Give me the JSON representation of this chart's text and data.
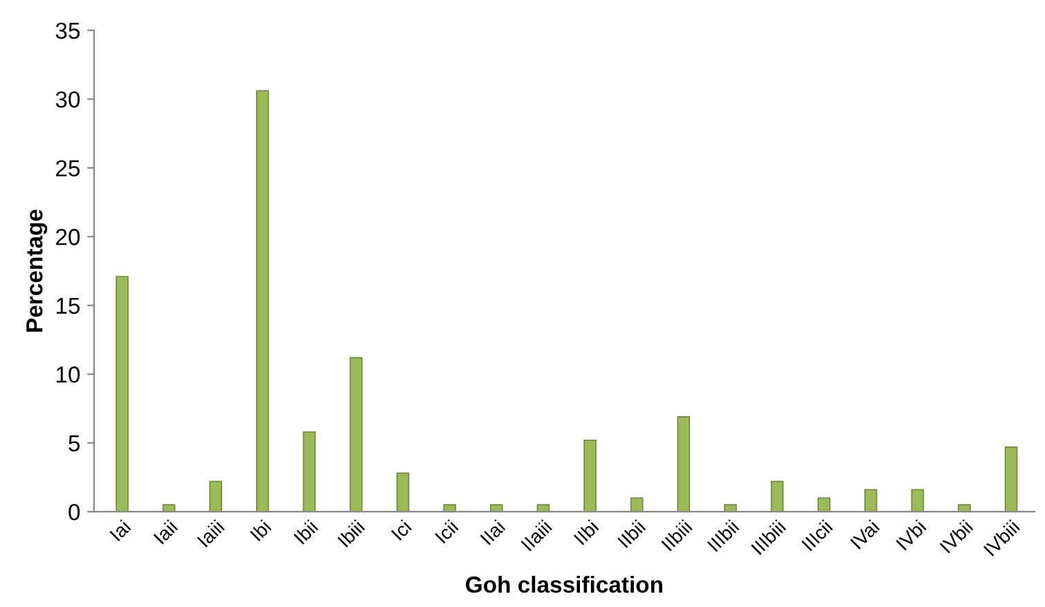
{
  "chart_data": {
    "type": "bar",
    "xlabel": "Goh classification",
    "ylabel": "Percentage",
    "categories": [
      "Iai",
      "Iaii",
      "Iaiii",
      "Ibi",
      "Ibii",
      "Ibiii",
      "Ici",
      "Icii",
      "IIai",
      "IIaiii",
      "IIbi",
      "IIbii",
      "IIbiii",
      "IIIbii",
      "IIIbiii",
      "IIIcii",
      "IVai",
      "IVbi",
      "IVbii",
      "IVbiii"
    ],
    "values": [
      17.1,
      0.5,
      2.2,
      30.6,
      5.8,
      11.2,
      2.8,
      0.5,
      0.5,
      0.5,
      5.2,
      1.0,
      6.9,
      0.5,
      2.2,
      1.0,
      1.6,
      1.6,
      0.5,
      4.7
    ],
    "color": "#9bbb59",
    "ylim": [
      0,
      35
    ],
    "yticks": [
      0,
      5,
      10,
      15,
      20,
      25,
      30,
      35
    ],
    "grid": false,
    "legend": false
  }
}
